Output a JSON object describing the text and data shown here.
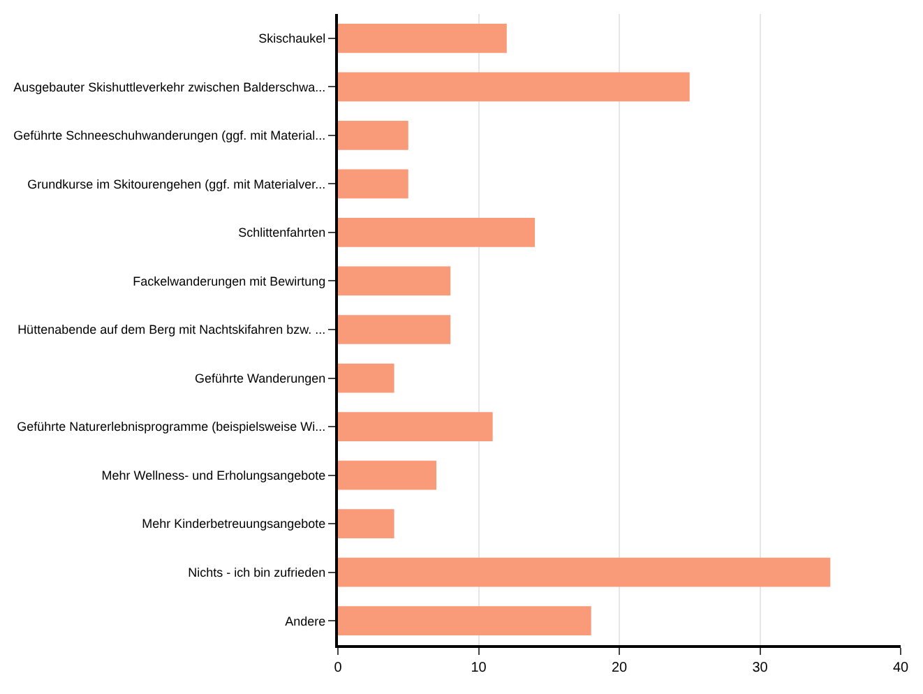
{
  "chart_data": {
    "type": "bar",
    "orientation": "horizontal",
    "categories": [
      "Skischaukel",
      "Ausgebauter Skishuttleverkehr zwischen Balderschwa...",
      "Geführte Schneeschuhwanderungen (ggf. mit Material...",
      "Grundkurse im Skitourengehen (ggf. mit Materialver...",
      "Schlittenfahrten",
      "Fackelwanderungen mit Bewirtung",
      "Hüttenabende auf dem Berg mit Nachtskifahren bzw. ...",
      "Geführte Wanderungen",
      "Geführte Naturerlebnisprogramme (beispielsweise Wi...",
      "Mehr Wellness- und Erholungsangebote",
      "Mehr Kinderbetreuungsangebote",
      "Nichts - ich bin zufrieden",
      "Andere"
    ],
    "values": [
      12,
      25,
      5,
      5,
      14,
      8,
      8,
      4,
      11,
      7,
      4,
      35,
      18
    ],
    "color": "#f99a78",
    "xlim": [
      0,
      40
    ],
    "xticks": [
      0,
      10,
      20,
      30,
      40
    ],
    "grid": "x"
  }
}
